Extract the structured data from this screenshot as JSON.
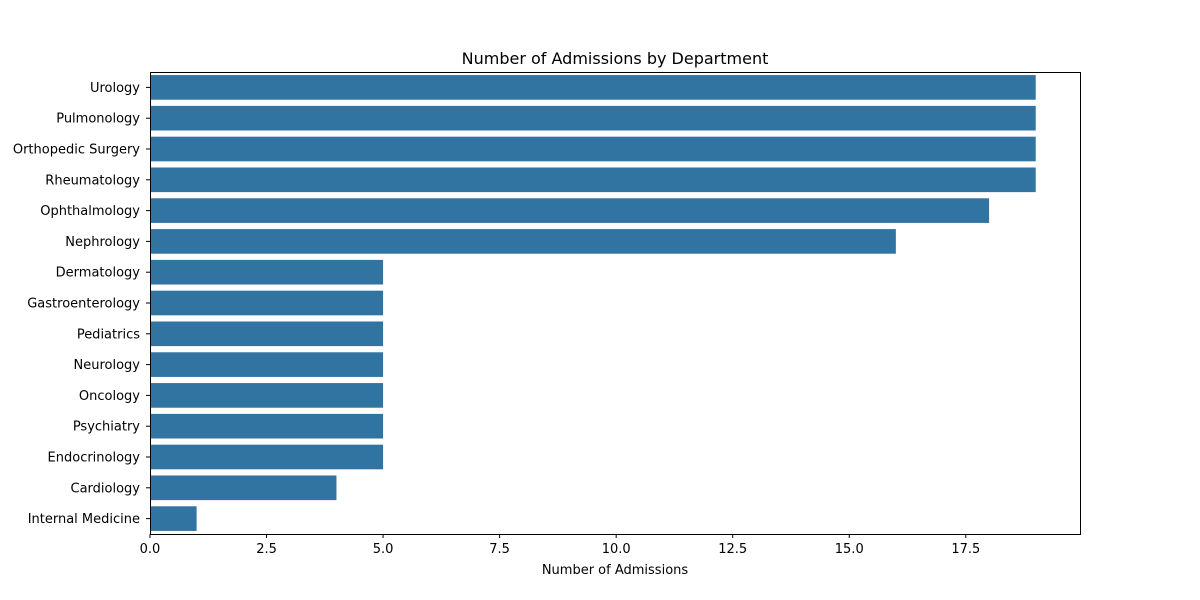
{
  "chart_data": {
    "type": "bar",
    "orientation": "horizontal",
    "title": "Number of Admissions by Department",
    "xlabel": "Number of Admissions",
    "ylabel": "",
    "xlim": [
      0,
      19.95
    ],
    "xticks": [
      0,
      2.5,
      5,
      7.5,
      10,
      12.5,
      15,
      17.5
    ],
    "xtick_labels": [
      "0.0",
      "2.5",
      "5.0",
      "7.5",
      "10.0",
      "12.5",
      "15.0",
      "17.5"
    ],
    "categories": [
      "Urology",
      "Pulmonology",
      "Orthopedic Surgery",
      "Rheumatology",
      "Ophthalmology",
      "Nephrology",
      "Dermatology",
      "Gastroenterology",
      "Pediatrics",
      "Neurology",
      "Oncology",
      "Psychiatry",
      "Endocrinology",
      "Cardiology",
      "Internal Medicine"
    ],
    "values": [
      19,
      19,
      19,
      19,
      18,
      16,
      5,
      5,
      5,
      5,
      5,
      5,
      5,
      4,
      1
    ],
    "bar_color": "#3274a1",
    "grid": false,
    "legend": "none"
  }
}
